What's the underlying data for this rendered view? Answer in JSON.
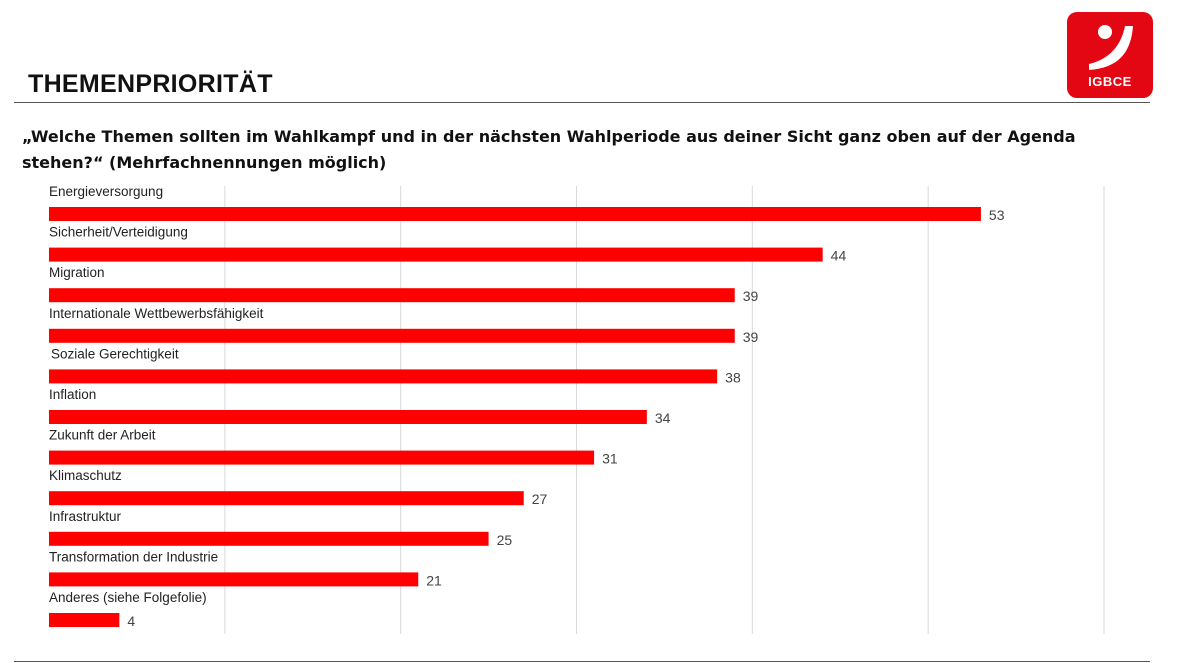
{
  "header": {
    "title": "THEMENPRIORITÄT"
  },
  "logo": {
    "text": "IGBCE",
    "color": "#e30613"
  },
  "question": {
    "text": "„Welche Themen sollten im Wahlkampf und in der nächsten Wahlperiode aus deiner Sicht ganz oben auf der Agenda stehen?“ (Mehrfachnennungen möglich)"
  },
  "chart_data": {
    "type": "bar",
    "orientation": "horizontal",
    "categories": [
      "Energieversorgung",
      "Sicherheit/Verteidigung",
      "Migration",
      "Internationale Wettbewerbsfähigkeit",
      "Soziale Gerechtigkeit",
      "Inflation",
      "Zukunft der Arbeit",
      "Klimaschutz",
      "Infrastruktur",
      "Transformation der Industrie",
      "Anderes (siehe Folgefolie)"
    ],
    "values": [
      53,
      44,
      39,
      39,
      38,
      34,
      31,
      27,
      25,
      21,
      4
    ],
    "xlim": [
      0,
      60
    ],
    "grid": true,
    "bar_color": "#ff0000",
    "grid_color": "#d9d9d9"
  }
}
